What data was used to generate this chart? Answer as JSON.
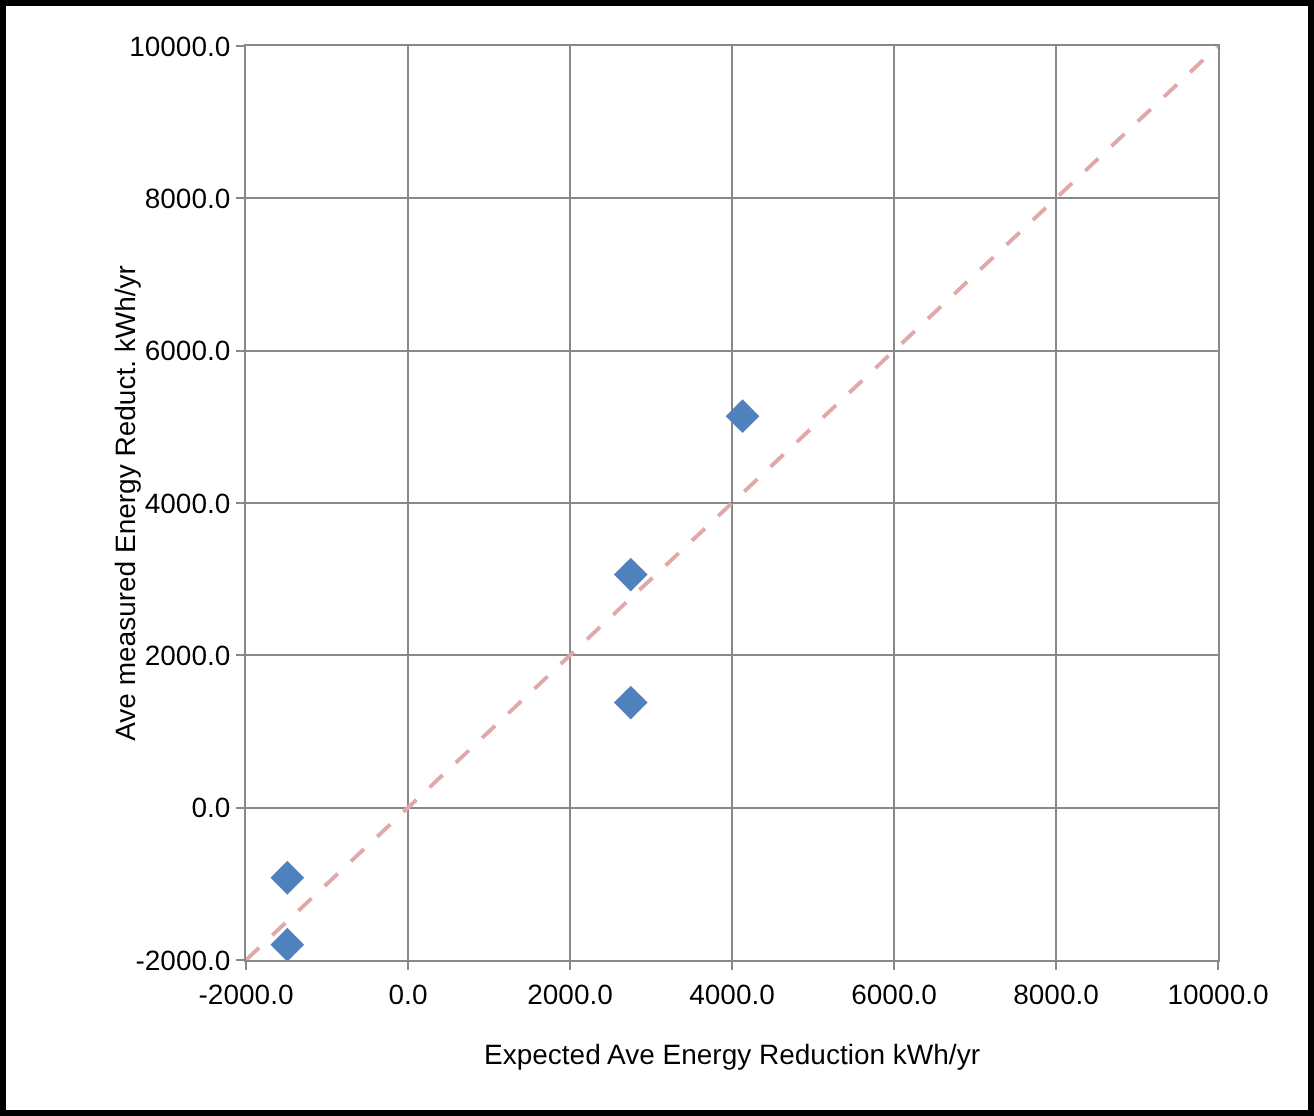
{
  "chart_data": {
    "type": "scatter",
    "xlabel": "Expected Ave Energy Reduction kWh/yr",
    "ylabel": "Ave measured Energy Reduct. kWh/yr",
    "series": [
      {
        "color": "#4f81bd",
        "marker": "diamond",
        "x": [
          -1490,
          -1490,
          2750,
          2750,
          4130
        ],
        "values": [
          -920,
          -1800,
          3060,
          1380,
          5140
        ]
      },
      {
        "type": "line",
        "color": "#e0a8a8",
        "marker": "none",
        "line_style": "dashed",
        "x": [
          -2000,
          10000
        ],
        "values": [
          -2000,
          10000
        ]
      }
    ],
    "xlim": [
      -2000,
      10000
    ],
    "ylim": [
      -2000,
      10000
    ],
    "xticks": [
      {
        "value": -2000,
        "label": "-2000.0"
      },
      {
        "value": 0,
        "label": "0.0"
      },
      {
        "value": 2000,
        "label": "2000.0"
      },
      {
        "value": 4000,
        "label": "4000.0"
      },
      {
        "value": 6000,
        "label": "6000.0"
      },
      {
        "value": 8000,
        "label": "8000.0"
      },
      {
        "value": 10000,
        "label": "10000.0"
      }
    ],
    "yticks": [
      {
        "value": -2000,
        "label": "-2000.0"
      },
      {
        "value": 0,
        "label": "0.0"
      },
      {
        "value": 2000,
        "label": "2000.0"
      },
      {
        "value": 4000,
        "label": "4000.0"
      },
      {
        "value": 6000,
        "label": "6000.0"
      },
      {
        "value": 8000,
        "label": "8000.0"
      },
      {
        "value": 10000,
        "label": "10000.0"
      }
    ],
    "grid": true,
    "legend": false
  }
}
